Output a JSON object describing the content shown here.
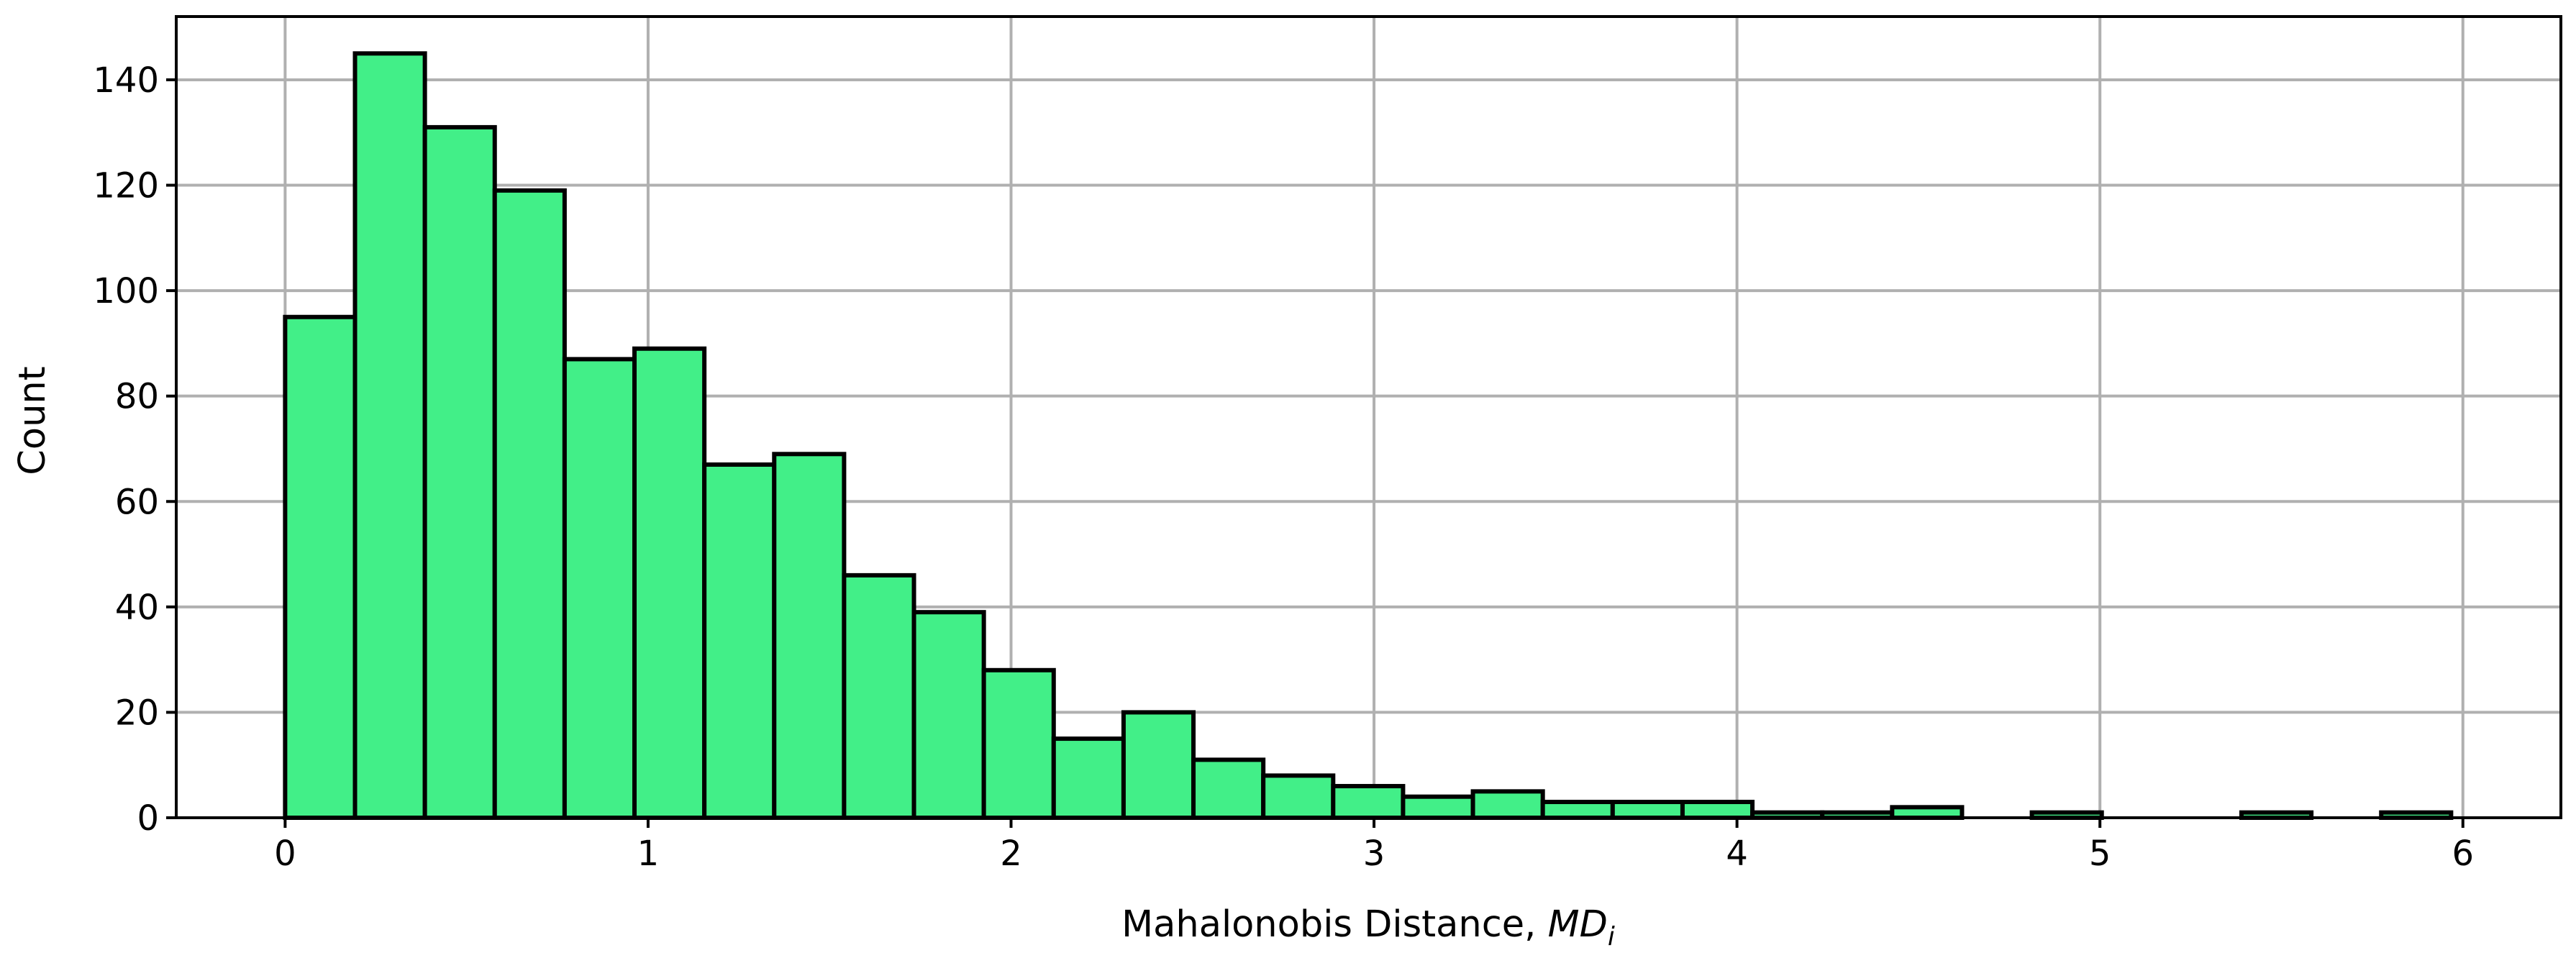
{
  "chart_data": {
    "type": "bar",
    "xlabel": "Mahalonobis Distance, ",
    "xlabel_math": "MD",
    "xlabel_math_sub": "i",
    "ylabel": "Count",
    "xlim": [
      -0.3,
      6.27
    ],
    "ylim": [
      0,
      152
    ],
    "xticks": [
      0,
      1,
      2,
      3,
      4,
      5,
      6
    ],
    "yticks": [
      0,
      20,
      40,
      60,
      80,
      100,
      120,
      140
    ],
    "grid": true,
    "legend": "none",
    "bin_start": 0.0,
    "bin_width": 0.1925,
    "counts": [
      95,
      145,
      131,
      119,
      87,
      89,
      67,
      69,
      46,
      39,
      28,
      15,
      20,
      11,
      8,
      6,
      4,
      5,
      3,
      3,
      3,
      1,
      1,
      2,
      0,
      1,
      0,
      0,
      1,
      0,
      1
    ],
    "bar_color": "#42ef88",
    "edge_color": "#000000",
    "grid_color": "#b0b0b0"
  }
}
